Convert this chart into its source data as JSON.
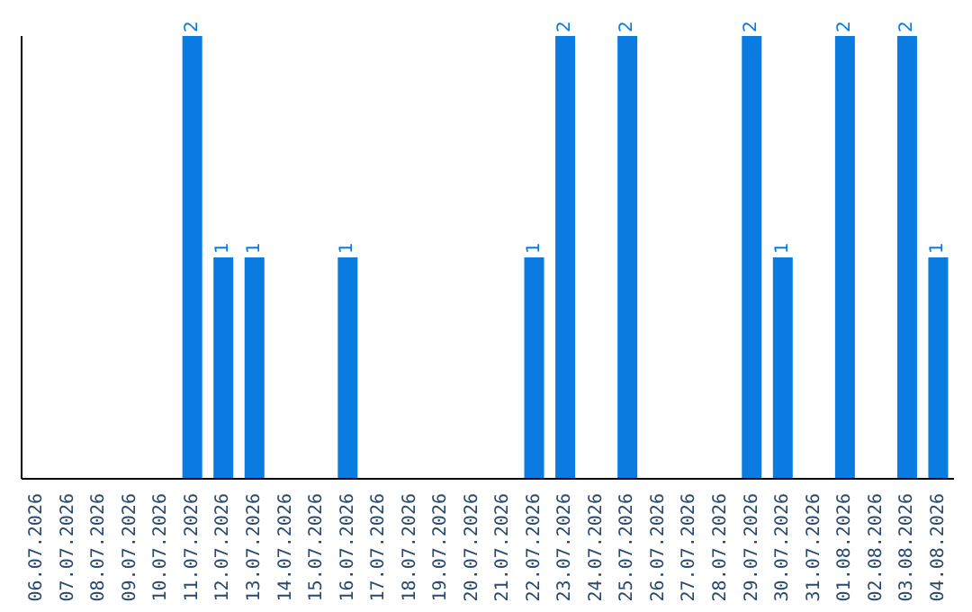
{
  "chart_data": {
    "type": "bar",
    "categories": [
      "06.07.2026",
      "07.07.2026",
      "08.07.2026",
      "09.07.2026",
      "10.07.2026",
      "11.07.2026",
      "12.07.2026",
      "13.07.2026",
      "14.07.2026",
      "15.07.2026",
      "16.07.2026",
      "17.07.2026",
      "18.07.2026",
      "19.07.2026",
      "20.07.2026",
      "21.07.2026",
      "22.07.2026",
      "23.07.2026",
      "24.07.2026",
      "25.07.2026",
      "26.07.2026",
      "27.07.2026",
      "28.07.2026",
      "29.07.2026",
      "30.07.2026",
      "31.07.2026",
      "01.08.2026",
      "02.08.2026",
      "03.08.2026",
      "04.08.2026"
    ],
    "values": [
      0,
      0,
      0,
      0,
      0,
      2,
      1,
      1,
      0,
      0,
      1,
      0,
      0,
      0,
      0,
      0,
      1,
      2,
      0,
      2,
      0,
      0,
      0,
      2,
      1,
      0,
      2,
      0,
      2,
      1
    ],
    "value_labels": [
      null,
      null,
      null,
      null,
      null,
      "2",
      "1",
      "1",
      null,
      null,
      "1",
      null,
      null,
      null,
      null,
      null,
      "1",
      "2",
      null,
      "2",
      null,
      null,
      null,
      "2",
      "1",
      null,
      "2",
      null,
      "2",
      "1"
    ],
    "color": "#0a7be0",
    "grid": false,
    "legend": false,
    "tick_labels": "x"
  }
}
